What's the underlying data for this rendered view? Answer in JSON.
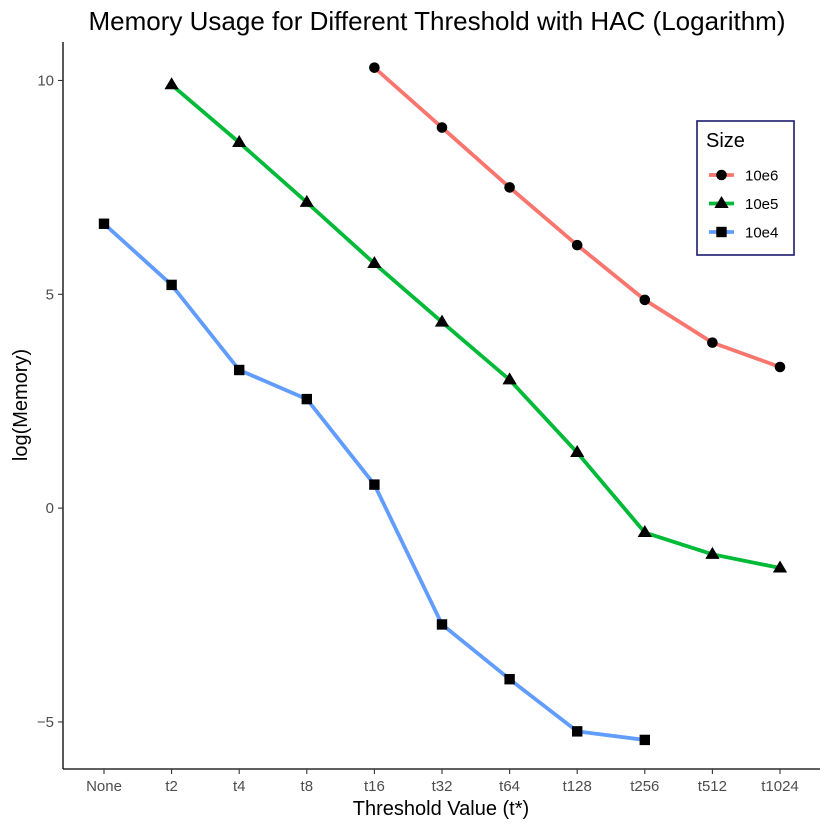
{
  "chart_data": {
    "type": "line",
    "title": "Memory Usage for Different Threshold with HAC (Logarithm)",
    "xlabel": "Threshold Value (t*)",
    "ylabel": "log(Memory)",
    "categories": [
      "None",
      "t2",
      "t4",
      "t8",
      "t16",
      "t32",
      "t64",
      "t128",
      "t256",
      "t512",
      "t1024"
    ],
    "ylim": [
      -6.1,
      10.9
    ],
    "yticks": [
      -5,
      0,
      5,
      10
    ],
    "ytick_labels": [
      "−5",
      "0",
      "5",
      "10"
    ],
    "grid": false,
    "legend": {
      "title": "Size",
      "position": "top-right"
    },
    "series": [
      {
        "name": "10e6",
        "color": "#F8766D",
        "marker": "circle",
        "values": [
          null,
          null,
          null,
          null,
          10.3,
          8.9,
          7.5,
          6.15,
          4.87,
          3.87,
          3.3
        ]
      },
      {
        "name": "10e5",
        "color": "#00BA38",
        "marker": "triangle",
        "values": [
          null,
          9.9,
          8.55,
          7.15,
          5.72,
          4.35,
          3.0,
          1.3,
          -0.57,
          -1.08,
          -1.4
        ]
      },
      {
        "name": "10e4",
        "color": "#619CFF",
        "marker": "square",
        "values": [
          6.65,
          5.22,
          3.23,
          2.55,
          0.55,
          -2.72,
          -4.0,
          -5.22,
          -5.42,
          null,
          null
        ]
      }
    ]
  }
}
